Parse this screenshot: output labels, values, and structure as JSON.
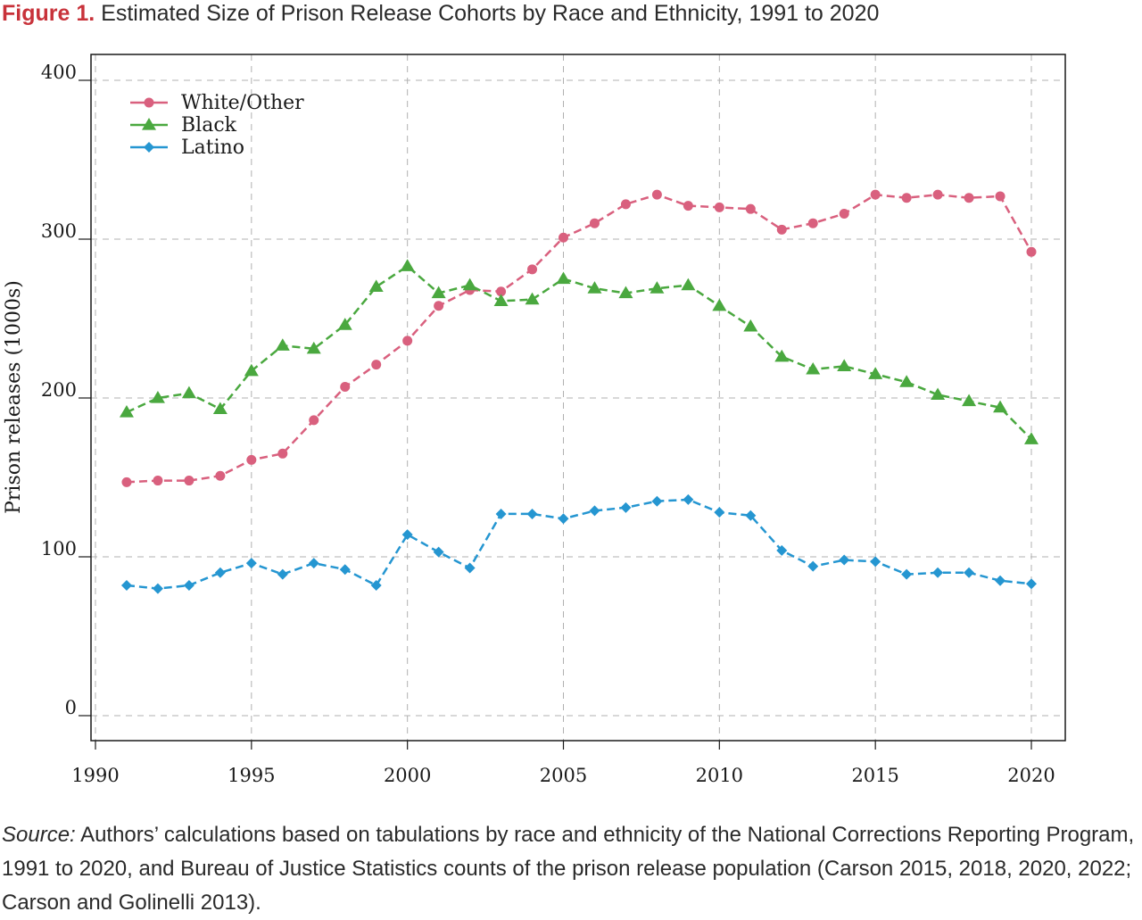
{
  "figure": {
    "label": "Figure 1.",
    "title": "Estimated Size of Prison Release Cohorts by Race and Ethnicity, 1991 to 2020"
  },
  "source": {
    "label": "Source:",
    "text": "Authors’ calculations based on tabulations by race and ethnicity of the National Corrections Reporting Program, 1991 to 2020, and Bureau of Justice Statistics counts of the prison release population (Carson 2015, 2018, 2020, 2022; Carson and Golinelli 2013)."
  },
  "chart_data": {
    "type": "line",
    "title": "",
    "xlabel": "",
    "ylabel": "Prison releases (1000s)",
    "xlim": [
      1990,
      2021
    ],
    "ylim": [
      0,
      400
    ],
    "x_ticks": [
      1990,
      1995,
      2000,
      2005,
      2010,
      2015,
      2020
    ],
    "y_ticks": [
      0,
      100,
      200,
      300,
      400
    ],
    "grid": "dashed",
    "legend_position": "top-left",
    "x": [
      1991,
      1992,
      1993,
      1994,
      1995,
      1996,
      1997,
      1998,
      1999,
      2000,
      2001,
      2002,
      2003,
      2004,
      2005,
      2006,
      2007,
      2008,
      2009,
      2010,
      2011,
      2012,
      2013,
      2014,
      2015,
      2016,
      2017,
      2018,
      2019,
      2020
    ],
    "series": [
      {
        "name": "White/Other",
        "color": "#d9607e",
        "marker": "circle",
        "values": [
          147,
          148,
          148,
          151,
          161,
          165,
          186,
          207,
          221,
          236,
          258,
          268,
          267,
          281,
          301,
          310,
          322,
          328,
          321,
          320,
          319,
          306,
          310,
          316,
          328,
          326,
          328,
          326,
          327,
          292
        ]
      },
      {
        "name": "Black",
        "color": "#4aa83f",
        "marker": "triangle",
        "values": [
          191,
          200,
          203,
          193,
          217,
          233,
          231,
          246,
          270,
          283,
          266,
          271,
          261,
          262,
          275,
          269,
          266,
          269,
          271,
          258,
          245,
          226,
          218,
          220,
          215,
          210,
          202,
          198,
          194,
          174
        ]
      },
      {
        "name": "Latino",
        "color": "#2596d1",
        "marker": "diamond",
        "values": [
          82,
          80,
          82,
          90,
          96,
          89,
          96,
          92,
          82,
          114,
          103,
          93,
          127,
          127,
          124,
          129,
          131,
          135,
          136,
          128,
          126,
          104,
          94,
          98,
          97,
          89,
          90,
          90,
          85,
          83
        ]
      }
    ]
  }
}
